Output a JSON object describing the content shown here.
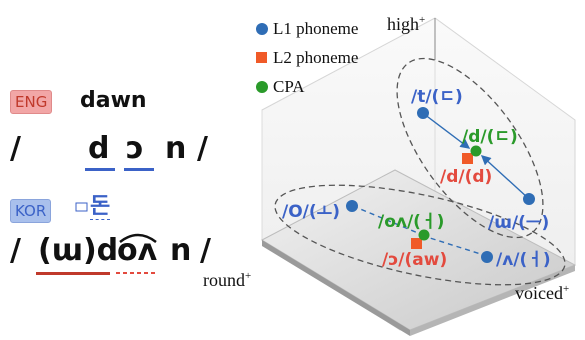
{
  "english": {
    "badge": "ENG",
    "word": "dawn",
    "ipa_open": "/",
    "ipa_d": "d",
    "ipa_o": "ɔ",
    "ipa_n": "n",
    "ipa_close": "/"
  },
  "korean": {
    "badge": "KOR",
    "hangul": "돈",
    "ipa_open": "/",
    "ipa_prefix": "(ɯ)d",
    "ipa_vowel": "oʌ",
    "ipa_n": "n",
    "ipa_close": "/"
  },
  "legend": {
    "l1": "L1 phoneme",
    "l2": "L2 phoneme",
    "cpa": "CPA"
  },
  "axes": {
    "high": "high",
    "round": "round",
    "voiced": "voiced",
    "plus": "+"
  },
  "phonemes": {
    "t": "/t/(ㄷ)",
    "d_green": "/d/(ㄷ)",
    "d_red": "/d/(d)",
    "u": "/ɯ/(ㅡ)",
    "o": "/O/(ㅗ)",
    "oa_green": "/oʌ/(ㅓ)",
    "aw_red": "/ɔ/(aw)",
    "a": "/ʌ/(ㅓ)"
  },
  "colors": {
    "l1": "#2f6db5",
    "l2": "#f05a28",
    "cpa": "#2a9a2a",
    "eng_badge": "#f2a6a6",
    "kor_badge": "#a9c0ec",
    "blue_text": "#3b62c7",
    "red_text": "#e34a3e"
  }
}
